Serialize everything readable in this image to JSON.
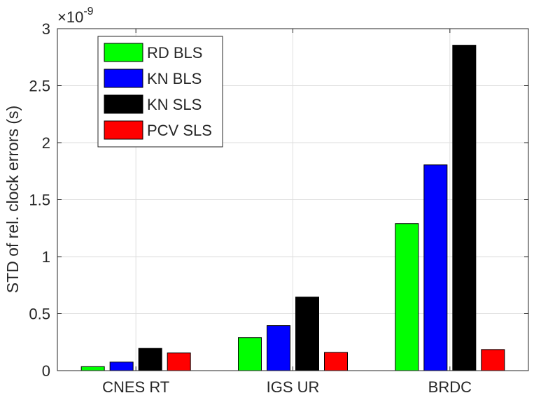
{
  "chart_data": {
    "type": "bar",
    "title": "",
    "xlabel": "",
    "ylabel": "STD of rel. clock errors (s)",
    "y_multiplier_label": "×10",
    "y_multiplier_exponent": "-9",
    "categories": [
      "CNES RT",
      "IGS UR",
      "BRDC"
    ],
    "ylim": [
      0,
      3
    ],
    "yticks": [
      0,
      0.5,
      1,
      1.5,
      2,
      2.5,
      3
    ],
    "ytick_labels": [
      "0",
      "0.5",
      "1",
      "1.5",
      "2",
      "2.5",
      "3"
    ],
    "grid": true,
    "legend_position": "top-left",
    "series": [
      {
        "name": "RD BLS",
        "color": "#00ff00",
        "values": [
          0.035,
          0.29,
          1.29
        ]
      },
      {
        "name": "KN BLS",
        "color": "#0000ff",
        "values": [
          0.075,
          0.395,
          1.805
        ]
      },
      {
        "name": "KN SLS",
        "color": "#000000",
        "values": [
          0.195,
          0.645,
          2.855
        ]
      },
      {
        "name": "PCV SLS",
        "color": "#ff0000",
        "values": [
          0.155,
          0.16,
          0.185
        ]
      }
    ]
  }
}
